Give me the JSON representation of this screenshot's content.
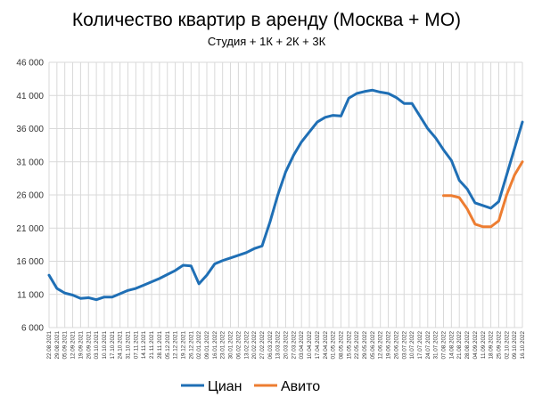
{
  "chart_data": {
    "type": "line",
    "title": "Количество квартир в аренду (Москва + МО)",
    "subtitle": "Студия + 1К + 2К + 3К",
    "xlabel": "",
    "ylabel": "",
    "ylim": [
      6000,
      46000
    ],
    "yticks": [
      6000,
      11000,
      16000,
      21000,
      26000,
      31000,
      36000,
      41000,
      46000
    ],
    "ytick_labels": [
      "6 000",
      "11 000",
      "16 000",
      "21 000",
      "26 000",
      "31 000",
      "36 000",
      "41 000",
      "46 000"
    ],
    "grid": "vertical-and-horizontal",
    "legend_position": "bottom",
    "categories": [
      "22.08.2021",
      "29.08.2021",
      "05.09.2021",
      "12.09.2021",
      "19.09.2021",
      "26.09.2021",
      "03.10.2021",
      "10.10.2021",
      "17.10.2021",
      "24.10.2021",
      "31.10.2021",
      "07.11.2021",
      "14.11.2021",
      "21.11.2021",
      "28.11.2021",
      "05.12.2021",
      "12.12.2021",
      "19.12.2021",
      "26.12.2021",
      "02.01.2022",
      "09.01.2022",
      "16.01.2022",
      "23.01.2022",
      "30.01.2022",
      "06.02.2022",
      "13.02.2022",
      "20.02.2022",
      "27.02.2022",
      "06.03.2022",
      "13.03.2022",
      "20.03.2022",
      "27.03.2022",
      "03.04.2022",
      "10.04.2022",
      "17.04.2022",
      "24.04.2022",
      "01.05.2022",
      "08.05.2022",
      "15.05.2022",
      "22.05.2022",
      "29.05.2022",
      "05.06.2022",
      "12.06.2022",
      "19.06.2022",
      "26.06.2022",
      "03.07.2022",
      "10.07.2022",
      "17.07.2022",
      "24.07.2022",
      "31.07.2022",
      "07.08.2022",
      "14.08.2022",
      "21.08.2022",
      "28.08.2022",
      "04.09.2022",
      "11.09.2022",
      "18.09.2022",
      "25.09.2022",
      "02.10.2022",
      "09.10.2022",
      "16.10.2022"
    ],
    "series": [
      {
        "name": "Циан",
        "color": "#1f6fb5",
        "values": [
          13900,
          11900,
          11200,
          10900,
          10400,
          10500,
          10200,
          10600,
          10600,
          11100,
          11600,
          11900,
          12400,
          12900,
          13400,
          14000,
          14600,
          15400,
          15300,
          12600,
          13900,
          15600,
          16100,
          16500,
          16900,
          17300,
          17900,
          18300,
          21900,
          26000,
          29500,
          32000,
          34000,
          35500,
          37000,
          37700,
          38000,
          37900,
          40600,
          41300,
          41600,
          41800,
          41500,
          41300,
          40700,
          39800,
          39800,
          37900,
          36000,
          34600,
          32800,
          31200,
          28200,
          26900,
          24800,
          24400,
          24000,
          25000,
          29000,
          33000,
          37000
        ]
      },
      {
        "name": "Авито",
        "color": "#ed7d31",
        "values": [
          null,
          null,
          null,
          null,
          null,
          null,
          null,
          null,
          null,
          null,
          null,
          null,
          null,
          null,
          null,
          null,
          null,
          null,
          null,
          null,
          null,
          null,
          null,
          null,
          null,
          null,
          null,
          null,
          null,
          null,
          null,
          null,
          null,
          null,
          null,
          null,
          null,
          null,
          null,
          null,
          null,
          null,
          null,
          null,
          null,
          null,
          null,
          null,
          null,
          null,
          25900,
          25900,
          25600,
          23900,
          21600,
          21200,
          21200,
          22100,
          26000,
          29000,
          31000
        ]
      }
    ]
  }
}
